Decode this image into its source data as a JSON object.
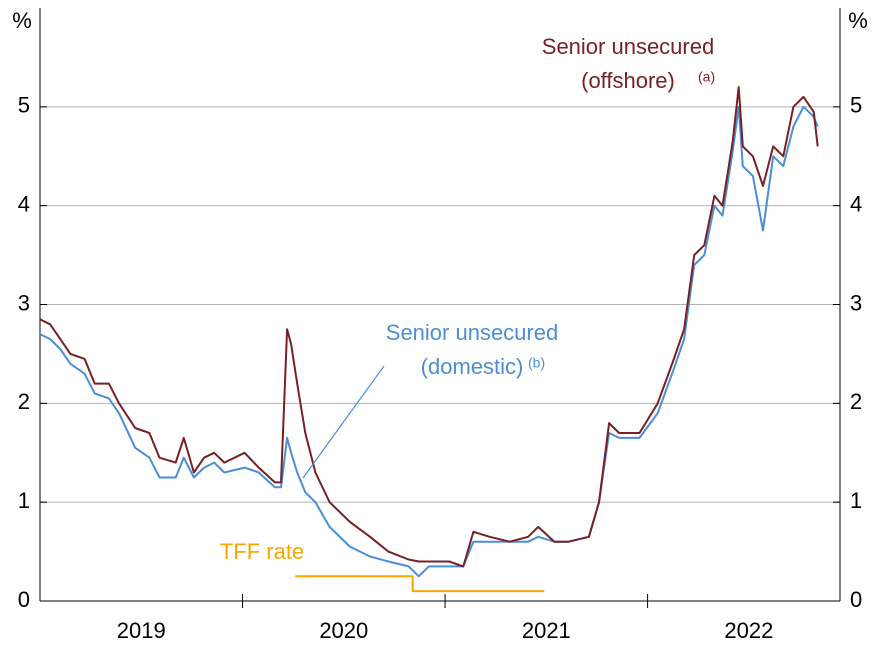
{
  "chart_data": {
    "type": "line",
    "y_unit_left": "%",
    "y_unit_right": "%",
    "xlim": [
      2019,
      2022.95
    ],
    "xticks": [
      2020,
      2021,
      2022
    ],
    "x_labels": [
      {
        "value": 2019.5,
        "label": "2019"
      },
      {
        "value": 2020.5,
        "label": "2020"
      },
      {
        "value": 2021.5,
        "label": "2021"
      },
      {
        "value": 2022.5,
        "label": "2022"
      }
    ],
    "ylim": [
      0,
      6
    ],
    "yticks": [
      0,
      1,
      2,
      3,
      4,
      5
    ],
    "y2lim": [
      0,
      6
    ],
    "y2ticks": [
      0,
      1,
      2,
      3,
      4,
      5
    ],
    "grid": true,
    "x": [
      2019.0,
      2019.05,
      2019.1,
      2019.15,
      2019.22,
      2019.27,
      2019.34,
      2019.39,
      2019.47,
      2019.54,
      2019.59,
      2019.67,
      2019.71,
      2019.76,
      2019.81,
      2019.86,
      2019.91,
      2020.01,
      2020.08,
      2020.16,
      2020.19,
      2020.22,
      2020.24,
      2020.27,
      2020.31,
      2020.36,
      2020.43,
      2020.53,
      2020.63,
      2020.72,
      2020.82,
      2020.87,
      2020.92,
      2021.02,
      2021.09,
      2021.14,
      2021.22,
      2021.32,
      2021.41,
      2021.46,
      2021.54,
      2021.61,
      2021.71,
      2021.76,
      2021.81,
      2021.86,
      2021.96,
      2022.05,
      2022.13,
      2022.18,
      2022.23,
      2022.28,
      2022.33,
      2022.37,
      2022.42,
      2022.45,
      2022.47,
      2022.52,
      2022.57,
      2022.62,
      2022.67,
      2022.72,
      2022.77,
      2022.82,
      2022.84
    ],
    "series": [
      {
        "name": "Senior unsecured (domestic)",
        "color": "#4a8fd6",
        "values": [
          2.7,
          2.65,
          2.55,
          2.4,
          2.3,
          2.1,
          2.05,
          1.9,
          1.55,
          1.45,
          1.25,
          1.25,
          1.45,
          1.25,
          1.35,
          1.4,
          1.3,
          1.35,
          1.3,
          1.15,
          1.15,
          1.65,
          1.5,
          1.3,
          1.1,
          1.0,
          0.75,
          0.55,
          0.45,
          0.4,
          0.35,
          0.25,
          0.35,
          0.35,
          0.35,
          0.6,
          0.6,
          0.6,
          0.6,
          0.65,
          0.6,
          0.6,
          0.65,
          1.0,
          1.7,
          1.65,
          1.65,
          1.9,
          2.35,
          2.65,
          3.4,
          3.5,
          4.0,
          3.9,
          4.55,
          5.0,
          4.4,
          4.3,
          3.75,
          4.5,
          4.4,
          4.8,
          5.0,
          4.9,
          4.8
        ]
      },
      {
        "name": "Senior unsecured (offshore)",
        "color": "#7a1f24",
        "values": [
          2.85,
          2.8,
          2.65,
          2.5,
          2.45,
          2.2,
          2.2,
          2.0,
          1.75,
          1.7,
          1.45,
          1.4,
          1.65,
          1.3,
          1.45,
          1.5,
          1.4,
          1.5,
          1.35,
          1.2,
          1.2,
          2.75,
          2.6,
          2.2,
          1.7,
          1.3,
          1.0,
          0.8,
          0.65,
          0.5,
          0.42,
          0.4,
          0.4,
          0.4,
          0.35,
          0.7,
          0.65,
          0.6,
          0.65,
          0.75,
          0.6,
          0.6,
          0.65,
          1.0,
          1.8,
          1.7,
          1.7,
          2.0,
          2.45,
          2.75,
          3.5,
          3.6,
          4.1,
          4.0,
          4.65,
          5.2,
          4.6,
          4.5,
          4.2,
          4.6,
          4.5,
          5.0,
          5.1,
          4.95,
          4.6
        ]
      },
      {
        "name": "TFF rate",
        "color": "#f5a800",
        "x": [
          2020.26,
          2020.84,
          2020.84,
          2021.49
        ],
        "values": [
          0.25,
          0.25,
          0.1,
          0.1
        ]
      }
    ],
    "annotations": [
      {
        "lines": [
          "Senior unsecured",
          "(offshore)"
        ],
        "sup": "(a)",
        "color": "#7a1f24"
      },
      {
        "lines": [
          "Senior unsecured",
          "(domestic)"
        ],
        "sup": "(b)",
        "color": "#4a8fd6"
      },
      {
        "lines": [
          "TFF rate"
        ],
        "color": "#f5a800"
      }
    ]
  }
}
